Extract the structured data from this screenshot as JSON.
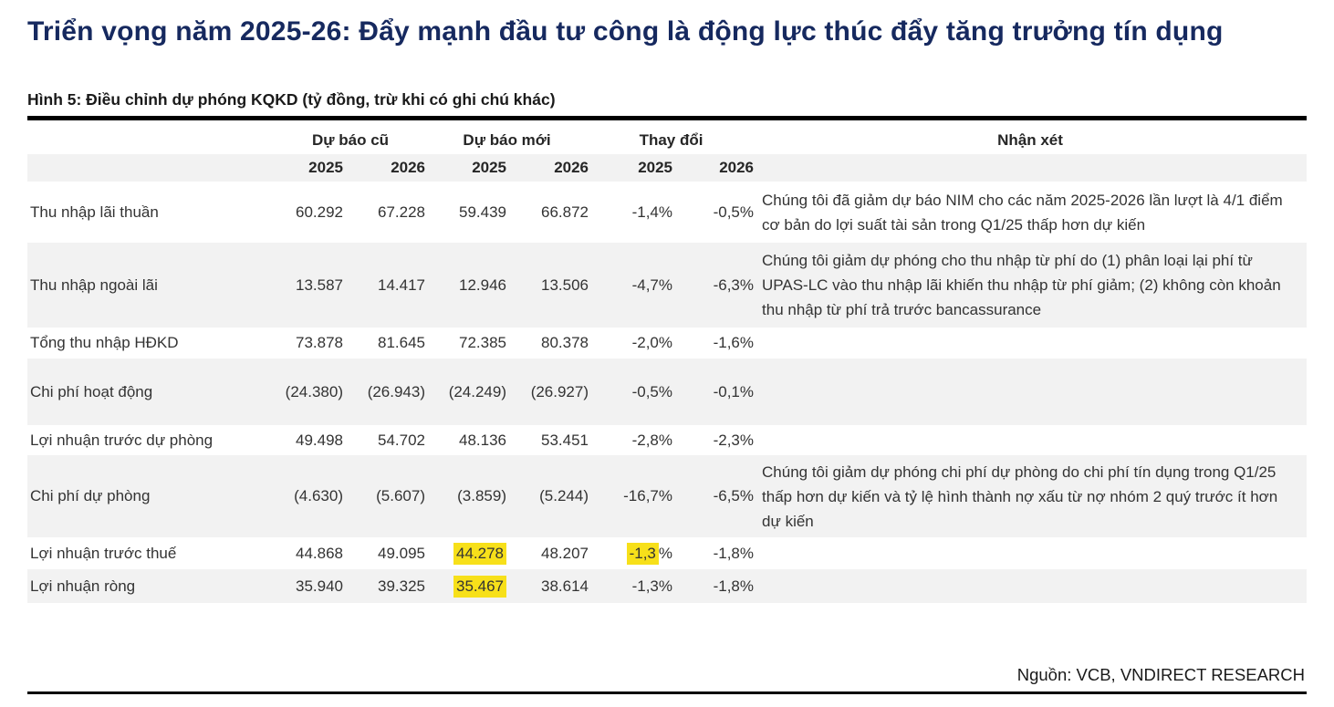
{
  "colors": {
    "title_navy": "#16295f",
    "stripe_gray": "#f2f2f2",
    "highlight_yellow": "#f7e01a"
  },
  "page": {
    "title": "Triển vọng năm 2025-26: Đẩy mạnh đầu tư công là động lực thúc đẩy tăng trưởng tín dụng",
    "source": "Nguồn: VCB, VNDIRECT RESEARCH"
  },
  "figure": {
    "caption": "Hình 5: Điều chỉnh dự phóng KQKD (tỷ đồng, trừ khi có ghi chú khác)"
  },
  "table": {
    "column_groups": [
      {
        "label": "Dự báo cũ"
      },
      {
        "label": "Dự báo mới"
      },
      {
        "label": "Thay đổi"
      },
      {
        "label": "Nhận xét"
      }
    ],
    "year_headers": [
      "2025",
      "2026",
      "2025",
      "2026",
      "2025",
      "2026"
    ],
    "rows": [
      {
        "label": "Thu nhập lãi thuần",
        "values": [
          "60.292",
          "67.228",
          "59.439",
          "66.872",
          "-1,4%",
          "-0,5%"
        ],
        "comment": "Chúng tôi đã giảm dự báo NIM cho các năm 2025-2026 lần lượt là 4/1 điểm cơ bản do lợi suất tài sản trong Q1/25 thấp hơn dự kiến",
        "shaded": false
      },
      {
        "label": "Thu nhập ngoài lãi",
        "values": [
          "13.587",
          "14.417",
          "12.946",
          "13.506",
          "-4,7%",
          "-6,3%"
        ],
        "comment": "Chúng tôi giảm dự phóng cho thu nhập từ phí do (1) phân loại lại phí từ UPAS-LC vào thu nhập lãi khiến thu nhập từ phí giảm; (2) không còn khoản thu nhập từ phí trả trước bancassurance",
        "shaded": true
      },
      {
        "label": "Tổng thu nhập HĐKD",
        "values": [
          "73.878",
          "81.645",
          "72.385",
          "80.378",
          "-2,0%",
          "-1,6%"
        ],
        "comment": "",
        "shaded": false
      },
      {
        "label": "Chi phí hoạt động",
        "values": [
          "(24.380)",
          "(26.943)",
          "(24.249)",
          "(26.927)",
          "-0,5%",
          "-0,1%"
        ],
        "comment": "",
        "shaded": true
      },
      {
        "label": "Lợi nhuận trước dự phòng",
        "values": [
          "49.498",
          "54.702",
          "48.136",
          "53.451",
          "-2,8%",
          "-2,3%"
        ],
        "comment": "",
        "shaded": false
      },
      {
        "label": "Chi phí dự phòng",
        "values": [
          "(4.630)",
          "(5.607)",
          "(3.859)",
          "(5.244)",
          "-16,7%",
          "-6,5%"
        ],
        "comment": "Chúng tôi giảm dự phóng chi phí dự phòng do chi phí tín dụng trong Q1/25 thấp hơn dự kiến và tỷ lệ hình thành nợ xấu từ nợ nhóm 2 quý trước ít hơn dự kiến",
        "shaded": true
      },
      {
        "label": "Lợi nhuận trước thuế",
        "values": [
          "44.868",
          "49.095",
          "44.278",
          "48.207",
          "-1,3%",
          "-1,8%"
        ],
        "highlights": [
          {
            "cell": 2,
            "text": "44.278"
          },
          {
            "cell": 4,
            "text": "-1,3"
          }
        ],
        "comment": "",
        "shaded": false
      },
      {
        "label": "Lợi nhuận ròng",
        "values": [
          "35.940",
          "39.325",
          "35.467",
          "38.614",
          "-1,3%",
          "-1,8%"
        ],
        "highlights": [
          {
            "cell": 2,
            "text": "35.467"
          }
        ],
        "comment": "",
        "shaded": true
      }
    ]
  }
}
